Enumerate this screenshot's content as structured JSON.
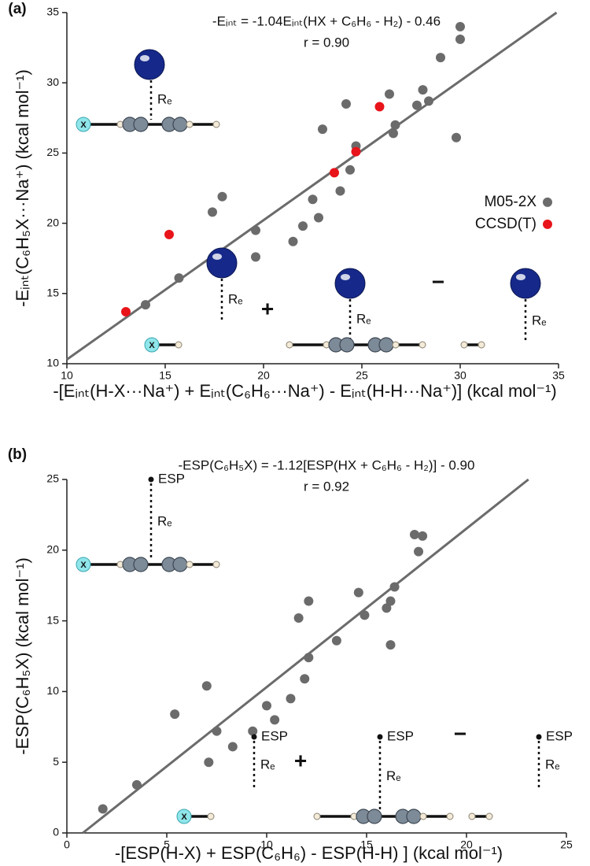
{
  "chart_data": [
    {
      "type": "scatter",
      "panel_label": "(a)",
      "title": "-Eᵢₙₜ = -1.04Eᵢₙₜ(HX + C₆H₆ - H₂) - 0.46",
      "subtitle": "r = 0.90",
      "x_label": "-[Eᵢₙₜ(H-X···Na⁺) + Eᵢₙₜ(C₆H₆···Na⁺) - Eᵢₙₜ(H-H···Na⁺)] (kcal mol⁻¹)",
      "y_label": "-Eᵢₙₜ(C₆H₅X···Na⁺) (kcal mol⁻¹)",
      "xlim": [
        10,
        35
      ],
      "ylim": [
        10,
        35
      ],
      "xticks": [
        10,
        15,
        20,
        25,
        30,
        35
      ],
      "yticks": [
        10,
        15,
        20,
        25,
        30,
        35
      ],
      "legend": "right",
      "series": [
        {
          "name": "M05-2X",
          "color": "#6b6b6b",
          "x": [
            14.0,
            15.7,
            17.4,
            17.9,
            19.6,
            19.6,
            21.5,
            22.0,
            22.5,
            22.8,
            23.0,
            23.9,
            24.2,
            24.4,
            24.7,
            26.4,
            26.6,
            26.7,
            27.8,
            28.1,
            28.4,
            29.0,
            29.8,
            30.0,
            30.0
          ],
          "values": [
            14.2,
            16.1,
            20.8,
            21.9,
            19.5,
            17.6,
            18.7,
            19.8,
            21.7,
            20.4,
            26.7,
            22.3,
            28.5,
            23.8,
            25.5,
            29.2,
            26.4,
            27.0,
            28.4,
            29.5,
            28.7,
            31.8,
            26.1,
            33.1,
            34.0
          ]
        },
        {
          "name": "CCSD(T)",
          "color": "#e8141a",
          "x": [
            13.0,
            15.2,
            23.6,
            24.7,
            25.9
          ],
          "values": [
            13.7,
            19.2,
            23.6,
            25.1,
            28.3
          ]
        }
      ],
      "fit_line": {
        "color": "#6b6b6b",
        "x": [
          10,
          34.9
        ],
        "y": [
          10.3,
          35
        ]
      },
      "diagram_labels": {
        "halogen": "X",
        "distance": "Rₑ",
        "plus": "+",
        "minus": "−"
      }
    },
    {
      "type": "scatter",
      "panel_label": "(b)",
      "title": "-ESP(C₆H₅X) = -1.12[ESP(HX + C₆H₆ - H₂)] - 0.90",
      "subtitle": "r = 0.92",
      "x_label": "-[ESP(H-X) + ESP(C₆H₆) - ESP(H-H) ] (kcal mol⁻¹)",
      "y_label": "-ESP(C₆H₅X) (kcal mol⁻¹)",
      "xlim": [
        0,
        25
      ],
      "ylim": [
        0,
        25
      ],
      "xticks": [
        0,
        5,
        10,
        15,
        20,
        25
      ],
      "yticks": [
        0,
        5,
        10,
        15,
        20,
        25
      ],
      "series": [
        {
          "color": "#6b6b6b",
          "x": [
            1.8,
            3.5,
            5.4,
            7.0,
            7.1,
            7.5,
            8.3,
            9.3,
            10.0,
            10.4,
            11.2,
            11.9,
            12.1,
            12.1,
            11.6,
            13.5,
            14.6,
            14.9,
            16.0,
            16.2,
            16.2,
            16.4,
            17.4,
            17.6,
            17.8
          ],
          "values": [
            1.7,
            3.4,
            8.4,
            10.4,
            5.0,
            7.2,
            6.1,
            7.2,
            9.0,
            8.0,
            9.5,
            10.9,
            12.4,
            16.4,
            15.2,
            13.6,
            17.0,
            15.4,
            15.9,
            16.4,
            13.3,
            17.4,
            21.1,
            19.9,
            21.0
          ]
        }
      ],
      "fit_line": {
        "color": "#6b6b6b",
        "x": [
          0.8,
          23.1
        ],
        "y": [
          0,
          25
        ]
      },
      "diagram_labels": {
        "halogen": "X",
        "probe": "ESP",
        "distance": "Rₑ",
        "plus": "+",
        "minus": "−"
      }
    }
  ]
}
